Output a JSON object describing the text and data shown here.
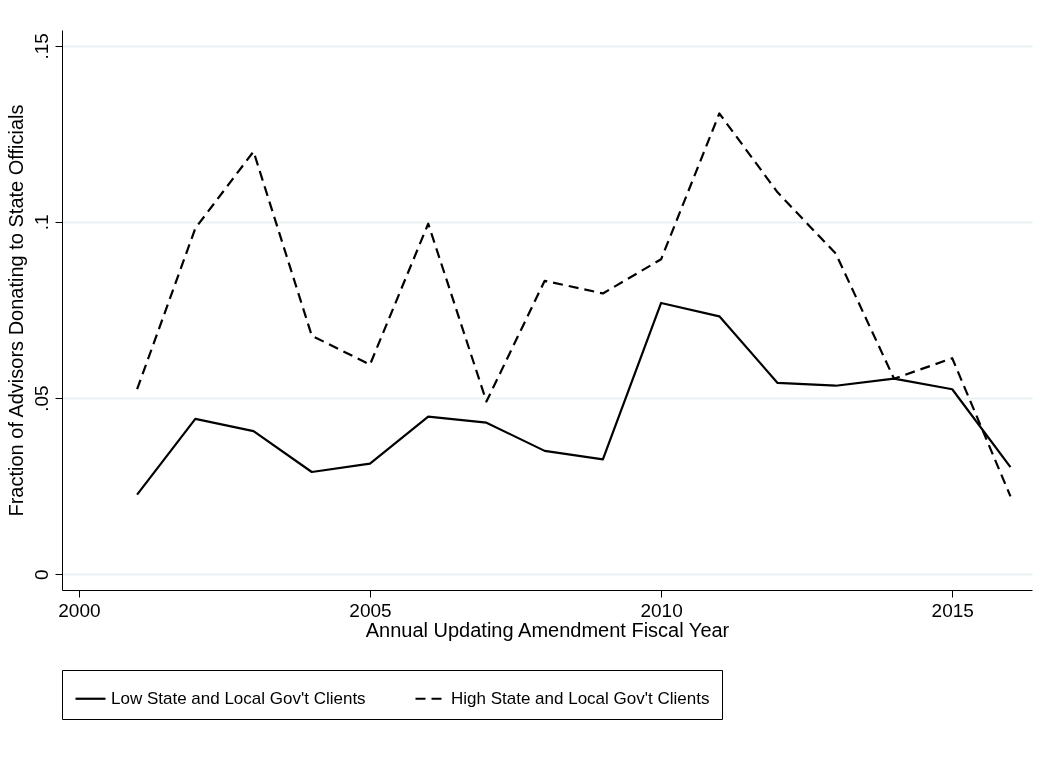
{
  "chart_data": {
    "type": "line",
    "xlabel": "Annual Updating Amendment Fiscal Year",
    "ylabel": "Fraction of Advisors Donating to State Officials",
    "x": [
      2001,
      2002,
      2003,
      2004,
      2005,
      2006,
      2007,
      2008,
      2009,
      2010,
      2011,
      2012,
      2013,
      2014,
      2015,
      2016
    ],
    "series": [
      {
        "name": "Low State and Local Gov't Clients",
        "color": "#000000",
        "line_style": "solid",
        "values": [
          0.0226,
          0.0441,
          0.0406,
          0.029,
          0.0314,
          0.0447,
          0.043,
          0.035,
          0.0326,
          0.077,
          0.0732,
          0.0543,
          0.0535,
          0.0555,
          0.0525,
          0.0304
        ]
      },
      {
        "name": "High State and Local Gov't Clients",
        "color": "#000000",
        "line_style": "dashed",
        "values": [
          0.0525,
          0.0982,
          0.12,
          0.0677,
          0.0595,
          0.0995,
          0.049,
          0.0833,
          0.0797,
          0.0894,
          0.1308,
          0.1084,
          0.091,
          0.0555,
          0.0613,
          0.0221
        ]
      }
    ],
    "xlim": [
      1999.71,
      2016.37
    ],
    "xticks": [
      2000,
      2005,
      2010,
      2015
    ],
    "ylim": [
      -0.0045,
      0.1545
    ],
    "yticks": [
      0,
      {
        "value": 0.05,
        "label": ".05"
      },
      {
        "value": 0.1,
        "label": ".1"
      },
      {
        "value": 0.15,
        "label": ".15"
      }
    ],
    "grid": "y",
    "legend": "bottom",
    "marker": "none"
  }
}
